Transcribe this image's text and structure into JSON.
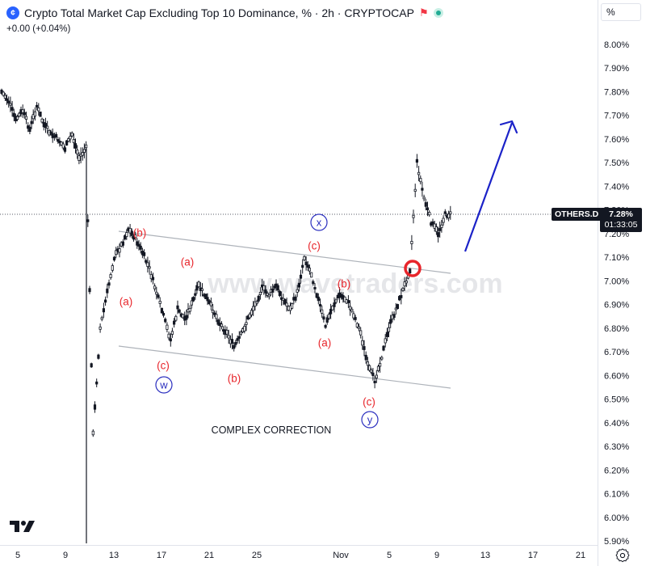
{
  "header": {
    "title": "Crypto Total Market Cap Excluding Top 10 Dominance, % · 2h · CRYPTOCAP",
    "change": "+0.00 (+0.04%)",
    "unit": "%"
  },
  "symbol_label": "OTHERS.D",
  "last_price": "7.28%",
  "countdown": "01:33:05",
  "watermark": "www.wavetraders.com",
  "colors": {
    "wave_label": "#e8252b",
    "wave_circle": "#2b2fbf",
    "arrow": "#1b22c8",
    "channel": "#aeb3ba",
    "candle": "#131722",
    "marker": "#e8252b"
  },
  "chart_data": {
    "type": "line",
    "title": "Crypto Total Market Cap Excluding Top 10 Dominance, %",
    "timeframe": "2h",
    "ylim": [
      5.9,
      8.0
    ],
    "y_ticks": [
      "8.00%",
      "7.90%",
      "7.80%",
      "7.70%",
      "7.60%",
      "7.50%",
      "7.40%",
      "7.30%",
      "7.20%",
      "7.10%",
      "7.00%",
      "6.90%",
      "6.80%",
      "6.70%",
      "6.60%",
      "6.50%",
      "6.40%",
      "6.30%",
      "6.20%",
      "6.10%",
      "6.00%",
      "5.90%"
    ],
    "x_ticks": [
      "5",
      "9",
      "13",
      "17",
      "21",
      "25",
      "Nov",
      "5",
      "9",
      "13",
      "17",
      "21"
    ],
    "grid": false,
    "series": [
      {
        "values": [
          7.8,
          7.76,
          7.68,
          7.72,
          7.64,
          7.74,
          7.66,
          7.62,
          7.6,
          7.56,
          7.62,
          7.52,
          7.56,
          6.35,
          6.8,
          6.95,
          7.1,
          7.15,
          7.22,
          7.18,
          7.12,
          7.05,
          6.95,
          6.85,
          6.75,
          6.88,
          6.84,
          6.9,
          6.98,
          6.93,
          6.88,
          6.82,
          6.78,
          6.72,
          6.77,
          6.84,
          6.9,
          6.97,
          6.94,
          6.98,
          6.92,
          6.88,
          6.95,
          7.1,
          7.03,
          6.92,
          6.81,
          6.89,
          6.94,
          6.92,
          6.86,
          6.78,
          6.64,
          6.58,
          6.68,
          6.8,
          6.88,
          6.96,
          7.05,
          7.5,
          7.35,
          7.25,
          7.2,
          7.28,
          7.28
        ]
      }
    ],
    "annotations": [
      {
        "text": "(b)",
        "role": "wave"
      },
      {
        "text": "(a)",
        "role": "wave"
      },
      {
        "text": "(a)",
        "role": "wave"
      },
      {
        "text": "(c)",
        "role": "wave"
      },
      {
        "text": "w",
        "role": "degree"
      },
      {
        "text": "(b)",
        "role": "wave"
      },
      {
        "text": "x",
        "role": "degree"
      },
      {
        "text": "(c)",
        "role": "wave"
      },
      {
        "text": "(b)",
        "role": "wave"
      },
      {
        "text": "(a)",
        "role": "wave"
      },
      {
        "text": "(c)",
        "role": "wave"
      },
      {
        "text": "y",
        "role": "degree"
      },
      {
        "text": "COMPLEX CORRECTION",
        "role": "caption"
      }
    ]
  }
}
